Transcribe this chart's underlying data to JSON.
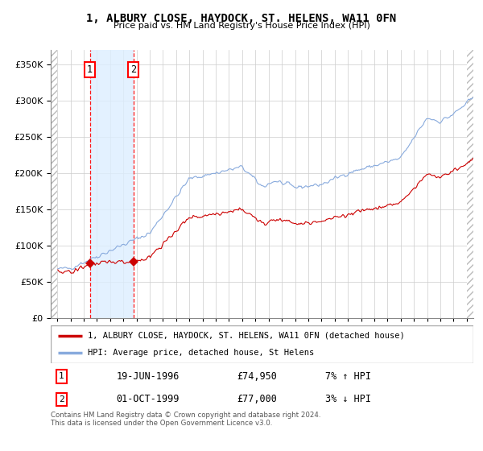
{
  "title": "1, ALBURY CLOSE, HAYDOCK, ST. HELENS, WA11 0FN",
  "subtitle": "Price paid vs. HM Land Registry's House Price Index (HPI)",
  "property_color": "#cc0000",
  "hpi_color": "#88aadd",
  "shaded_region_color": "#ddeeff",
  "property_label": "1, ALBURY CLOSE, HAYDOCK, ST. HELENS, WA11 0FN (detached house)",
  "hpi_label": "HPI: Average price, detached house, St Helens",
  "legend_entry1": "19-JUN-1996",
  "legend_price1": "£74,950",
  "legend_hpi1": "7% ↑ HPI",
  "legend_entry2": "01-OCT-1999",
  "legend_price2": "£77,000",
  "legend_hpi2": "3% ↓ HPI",
  "footnote": "Contains HM Land Registry data © Crown copyright and database right 2024.\nThis data is licensed under the Open Government Licence v3.0.",
  "trans1_year": 1996.46,
  "trans1_price": 74950,
  "trans2_year": 1999.75,
  "trans2_price": 77000,
  "ylim": [
    0,
    370000
  ],
  "xlim_start": 1993.5,
  "xlim_end": 2025.5
}
